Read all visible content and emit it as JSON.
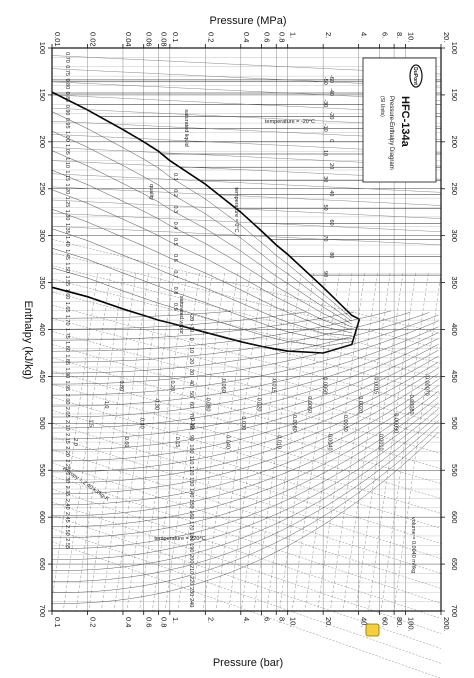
{
  "chart_data": {
    "type": "line",
    "title": "HFC-134a",
    "subtitle": "Pressure-Enthalpy Diagram",
    "units_note": "(SI Units)",
    "brand": "DuPont",
    "top_axis_label": "Pressure (MPa)",
    "bottom_axis_label": "Pressure (bar)",
    "enthalpy_axis_label": "Enthalpy (kJ/kg)",
    "pressure_scale": "log",
    "pressure_range_mpa": [
      0.01,
      20
    ],
    "enthalpy_range": [
      100,
      700
    ],
    "grid": true,
    "legend_placement": "top-right",
    "top_ticks": [
      "0.01",
      "0.02",
      "0.04",
      "0.06",
      "0.08",
      "0.1",
      "0.2",
      "0.4",
      "0.6",
      "0.8",
      "1.",
      "2.",
      "4.",
      "6.",
      "8.",
      "10.",
      "20."
    ],
    "top_tick_values": [
      0.01,
      0.02,
      0.04,
      0.06,
      0.08,
      0.1,
      0.2,
      0.4,
      0.6,
      0.8,
      1,
      2,
      4,
      6,
      8,
      10,
      20
    ],
    "bottom_ticks": [
      "0.1",
      "0.2",
      "0.4",
      "0.6",
      "0.8",
      "1.",
      "2.",
      "4.",
      "6.",
      "8.",
      "10.",
      "20.",
      "40.",
      "60.",
      "80.",
      "100.",
      "200."
    ],
    "bottom_tick_values": [
      0.01,
      0.02,
      0.04,
      0.06,
      0.08,
      0.1,
      0.2,
      0.4,
      0.6,
      0.8,
      1,
      2,
      4,
      6,
      8,
      10,
      20
    ],
    "enthalpy_ticks": [
      100,
      150,
      200,
      250,
      300,
      350,
      400,
      450,
      500,
      550,
      600,
      650,
      700
    ],
    "annotations": {
      "saturated_liquid": "saturated liquid",
      "saturated_vapor": "saturated vapor",
      "quality": "quality",
      "temperature_liquid": "temperature = 0°C",
      "temperature_top": "temperature = -20°C",
      "temperature_gas": "temperature = 220°C",
      "entropy": "entropy = 2.40 kJ/kg·K",
      "volume": "volume = 0.0040 m³/kg"
    },
    "saturated_liquid_line": [
      {
        "h": 147,
        "p": 0.01
      },
      {
        "h": 166,
        "p": 0.02
      },
      {
        "h": 187,
        "p": 0.04
      },
      {
        "h": 200,
        "p": 0.06
      },
      {
        "h": 210,
        "p": 0.08
      },
      {
        "h": 220,
        "p": 0.1
      },
      {
        "h": 245,
        "p": 0.2
      },
      {
        "h": 275,
        "p": 0.4
      },
      {
        "h": 295,
        "p": 0.6
      },
      {
        "h": 310,
        "p": 0.8
      },
      {
        "h": 320,
        "p": 1
      },
      {
        "h": 355,
        "p": 2
      },
      {
        "h": 385,
        "p": 3.5
      },
      {
        "h": 389,
        "p": 4.06
      }
    ],
    "saturated_vapor_line": [
      {
        "h": 355,
        "p": 0.01
      },
      {
        "h": 365,
        "p": 0.02
      },
      {
        "h": 378,
        "p": 0.04
      },
      {
        "h": 385,
        "p": 0.06
      },
      {
        "h": 390,
        "p": 0.08
      },
      {
        "h": 393,
        "p": 0.1
      },
      {
        "h": 403,
        "p": 0.2
      },
      {
        "h": 413,
        "p": 0.4
      },
      {
        "h": 418,
        "p": 0.6
      },
      {
        "h": 421,
        "p": 0.8
      },
      {
        "h": 423,
        "p": 1
      },
      {
        "h": 425,
        "p": 2
      },
      {
        "h": 416,
        "p": 3.5
      },
      {
        "h": 389,
        "p": 4.06
      }
    ],
    "quality_lines": [
      {
        "label": "0.1",
        "q": 0.1
      },
      {
        "label": "0.2",
        "q": 0.2
      },
      {
        "label": "0.3",
        "q": 0.3
      },
      {
        "label": "0.4",
        "q": 0.4
      },
      {
        "label": "0.5",
        "q": 0.5
      },
      {
        "label": "0.6",
        "q": 0.6
      },
      {
        "label": "0.7",
        "q": 0.7
      },
      {
        "label": "0.8",
        "q": 0.8
      },
      {
        "label": "0.9",
        "q": 0.9
      }
    ],
    "liquid_temperatures": [
      {
        "label": "-60",
        "h": 134
      },
      {
        "label": "-50",
        "h": 136
      },
      {
        "label": "-40",
        "h": 148
      },
      {
        "label": "-30",
        "h": 160
      },
      {
        "label": "-20",
        "h": 173
      },
      {
        "label": "-10",
        "h": 186
      },
      {
        "label": "0",
        "h": 200
      },
      {
        "label": "10",
        "h": 213
      },
      {
        "label": "20",
        "h": 227
      },
      {
        "label": "30",
        "h": 241
      },
      {
        "label": "40",
        "h": 256
      },
      {
        "label": "50",
        "h": 271
      },
      {
        "label": "60",
        "h": 287
      },
      {
        "label": "70",
        "h": 304
      },
      {
        "label": "80",
        "h": 322
      },
      {
        "label": "90",
        "h": 342
      }
    ],
    "entropy_labels": [
      "0.70",
      "0.75",
      "0.80",
      "0.85",
      "0.90",
      "0.95",
      "1.00",
      "1.05",
      "1.10",
      "1.15",
      "1.20",
      "1.25",
      "1.30",
      "1.35",
      "1.40",
      "1.45",
      "1.50",
      "1.55",
      "1.60",
      "1.65",
      "1.70",
      "1.75",
      "1.80",
      "1.85",
      "1.90",
      "1.95",
      "2.00",
      "2.05",
      "2.10",
      "2.15",
      "2.20",
      "2.25",
      "2.30",
      "2.35",
      "2.40",
      "2.45",
      "2.50",
      "2.55"
    ],
    "volume_labels": [
      "0.00070",
      "0.00080",
      "0.00090",
      "0.0010",
      "0.0015",
      "0.0020",
      "0.0030",
      "0.0040",
      "0.0050",
      "0.0060",
      "0.0080",
      "0.010",
      "0.015",
      "0.020",
      "0.030",
      "0.040",
      "0.060",
      "0.080",
      "0.10",
      "0.15",
      "0.20",
      "0.30",
      "0.40",
      "0.60",
      "0.80",
      "1.0",
      "1.5",
      "2.0"
    ],
    "vapor_temperature_labels": [
      "-20",
      "-10",
      "0",
      "10",
      "20",
      "30",
      "40",
      "50",
      "60",
      "70",
      "80",
      "90",
      "100",
      "110",
      "120",
      "130",
      "140",
      "150",
      "160",
      "170",
      "180",
      "190",
      "200",
      "210",
      "220",
      "230",
      "240"
    ]
  }
}
